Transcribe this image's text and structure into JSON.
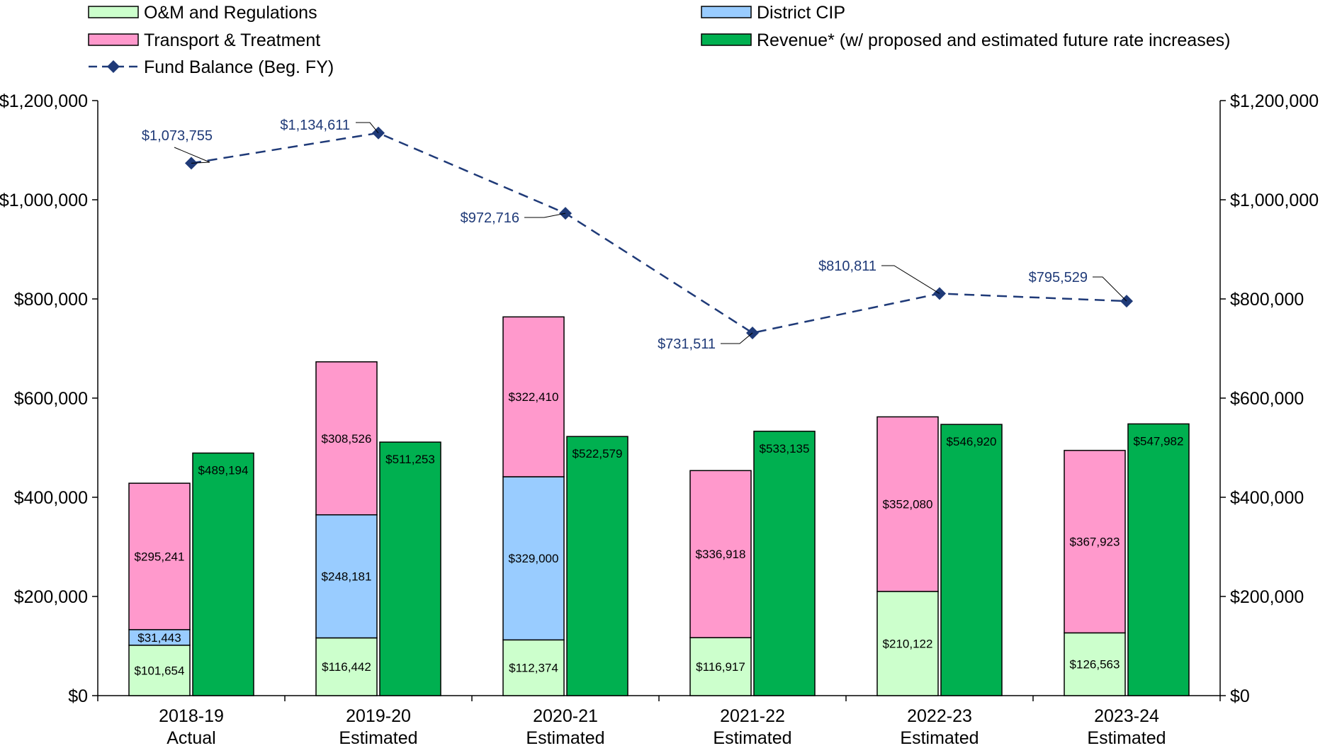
{
  "chart_data": {
    "type": "bar",
    "categories": [
      [
        "2018-19",
        "Actual"
      ],
      [
        "2019-20",
        "Estimated"
      ],
      [
        "2020-21",
        "Estimated"
      ],
      [
        "2021-22",
        "Estimated"
      ],
      [
        "2022-23",
        "Estimated"
      ],
      [
        "2023-24",
        "Estimated"
      ]
    ],
    "stacked_series": [
      {
        "name": "O&M and Regulations",
        "color": "#ccffcc",
        "values": [
          101654,
          116442,
          112374,
          116917,
          210122,
          126563
        ],
        "labels": [
          "$101,654",
          "$116,442",
          "$112,374",
          "$116,917",
          "$210,122",
          "$126,563"
        ]
      },
      {
        "name": "District CIP",
        "color": "#99ccff",
        "values": [
          31443,
          248181,
          329000,
          0,
          0,
          0
        ],
        "labels": [
          "$31,443",
          "$248,181",
          "$329,000",
          "",
          "",
          ""
        ]
      },
      {
        "name": "Transport & Treatment",
        "color": "#ff99cc",
        "values": [
          295241,
          308526,
          322410,
          336918,
          352080,
          367923
        ],
        "labels": [
          "$295,241",
          "$308,526",
          "$322,410",
          "$336,918",
          "$352,080",
          "$367,923"
        ]
      }
    ],
    "revenue_series": {
      "name": "Revenue* (w/ proposed and estimated future rate increases)",
      "color": "#00b050",
      "values": [
        489194,
        511253,
        522579,
        533135,
        546920,
        547982
      ],
      "labels": [
        "$489,194",
        "$511,253",
        "$522,579",
        "$533,135",
        "$546,920",
        "$547,982"
      ]
    },
    "line_series": {
      "name": "Fund Balance (Beg. FY)",
      "color": "#1f3a78",
      "values": [
        1073755,
        1134611,
        972716,
        731511,
        810811,
        795529
      ],
      "labels": [
        "$1,073,755",
        "$1,134,611",
        "$972,716",
        "$731,511",
        "$810,811",
        "$795,529"
      ]
    },
    "y_ticks": [
      0,
      200000,
      400000,
      600000,
      800000,
      1000000,
      1200000
    ],
    "y_tick_labels": [
      "$0",
      "$200,000",
      "$400,000",
      "$600,000",
      "$800,000",
      "$1,000,000",
      "$1,200,000"
    ],
    "ylim": [
      0,
      1200000
    ],
    "secondary_axis": true,
    "grid": false,
    "legend_position": "top"
  }
}
